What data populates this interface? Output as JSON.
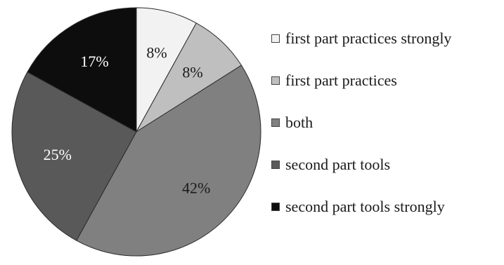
{
  "chart_data": {
    "type": "pie",
    "categories": [
      "first part practices strongly",
      "first part practices",
      "both",
      "second part tools",
      "second part tools strongly"
    ],
    "values": [
      8,
      8,
      42,
      25,
      17
    ],
    "value_labels": [
      "8%",
      "8%",
      "42%",
      "25%",
      "17%"
    ],
    "colors": [
      "#f2f2f2",
      "#bfbfbf",
      "#808080",
      "#595959",
      "#0d0d0d"
    ],
    "label_colors": [
      "#1a1a1a",
      "#1a1a1a",
      "#1a1a1a",
      "#ffffff",
      "#ffffff"
    ],
    "start_angle_deg": 0,
    "direction": "clockwise",
    "legend_position": "right"
  }
}
